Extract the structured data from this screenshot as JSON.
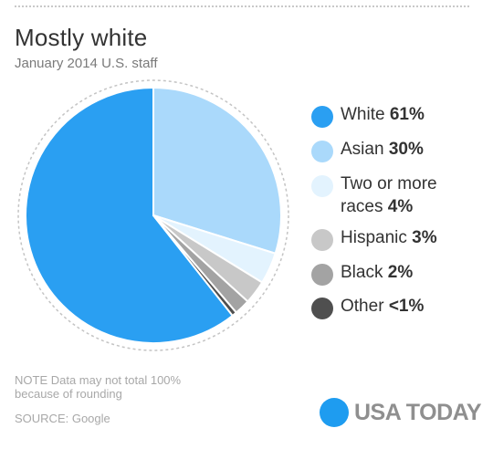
{
  "chart_data": {
    "type": "pie",
    "title": "Mostly white",
    "subtitle": "January 2014 U.S. staff",
    "slices": [
      {
        "label": "White",
        "value_label": "61%",
        "value": 61,
        "color": "#2a9ff2"
      },
      {
        "label": "Asian",
        "value_label": "30%",
        "value": 30,
        "color": "#aad9fb"
      },
      {
        "label": "Two or more races",
        "label_line1": "Two or more",
        "label_line2": "races",
        "value_label": "4%",
        "value": 4,
        "color": "#e3f3fe"
      },
      {
        "label": "Hispanic",
        "value_label": "3%",
        "value": 3,
        "color": "#c8c8c8"
      },
      {
        "label": "Black",
        "value_label": "2%",
        "value": 2,
        "color": "#a3a3a3"
      },
      {
        "label": "Other",
        "value_label": "<1%",
        "value": 0.6,
        "color": "#4f4f4f"
      }
    ],
    "legend_position": "right",
    "note": "NOTE Data may not total 100% because of rounding",
    "source": "SOURCE:  Google"
  },
  "brand": {
    "name": "USA TODAY",
    "dot_color": "#1e9cf0"
  }
}
